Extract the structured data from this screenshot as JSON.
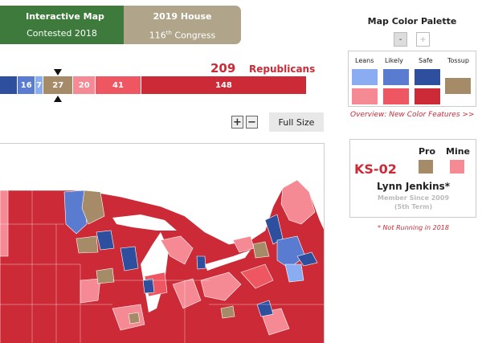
{
  "tabs": [
    {
      "line1": "Interactive Map",
      "line2": "Contested 2018"
    },
    {
      "line1": "2019 House",
      "line2_num": "116",
      "line2_sup": "th",
      "line2_rest": " Congress"
    }
  ],
  "seat_bar": {
    "republican_total": "209",
    "republican_label": "Republicans",
    "segments": [
      {
        "value": 16,
        "label": "",
        "color": "#2e4f9e"
      },
      {
        "value": 16,
        "label": "16",
        "color": "#5a7cd0"
      },
      {
        "value": 7,
        "label": "7",
        "color": "#8aadf2"
      },
      {
        "value": 27,
        "label": "27",
        "color": "#a58b67"
      },
      {
        "value": 20,
        "label": "20",
        "color": "#f58a95"
      },
      {
        "value": 41,
        "label": "41",
        "color": "#ee5761"
      },
      {
        "value": 148,
        "label": "148",
        "color": "#cc2a36"
      }
    ]
  },
  "toolbar": {
    "zoom_in": "+",
    "zoom_out": "−",
    "full_size": "Full Size"
  },
  "palette": {
    "title": "Map Color Palette",
    "minus": "-",
    "plus": "+",
    "labels": [
      "Leans",
      "Likely",
      "Safe",
      "Tossup"
    ],
    "dem_colors": [
      "#8aadf2",
      "#5a7cd0",
      "#2e4f9e"
    ],
    "gop_colors": [
      "#f58a95",
      "#ee5761",
      "#cc2a36"
    ],
    "tossup_color": "#a58b67",
    "overview_link": "Overview: New Color Features >>"
  },
  "district": {
    "pro_label": "Pro",
    "mine_label": "Mine",
    "id": "KS-02",
    "name": "Lynn Jenkins*",
    "since": "Member Since 2009",
    "term": "(5th Term)",
    "note": "* Not Running in 2018"
  }
}
